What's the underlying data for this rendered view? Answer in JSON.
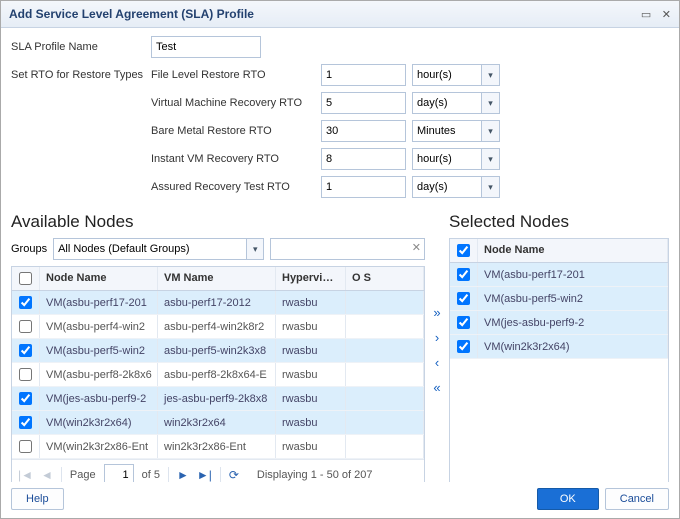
{
  "dialog": {
    "title": "Add Service Level Agreement (SLA) Profile"
  },
  "form": {
    "profile_name_label": "SLA Profile Name",
    "profile_name_value": "Test",
    "set_rto_label": "Set RTO for Restore Types",
    "rto_rows": [
      {
        "label": "File Level Restore RTO",
        "value": "1",
        "unit": "hour(s)"
      },
      {
        "label": "Virtual Machine Recovery RTO",
        "value": "5",
        "unit": "day(s)"
      },
      {
        "label": "Bare Metal Restore RTO",
        "value": "30",
        "unit": "Minutes"
      },
      {
        "label": "Instant VM Recovery RTO",
        "value": "8",
        "unit": "hour(s)"
      },
      {
        "label": "Assured Recovery Test RTO",
        "value": "1",
        "unit": "day(s)"
      }
    ]
  },
  "sections": {
    "available": "Available Nodes",
    "selected": "Selected Nodes"
  },
  "filter": {
    "groups_label": "Groups",
    "groups_value": "All Nodes (Default Groups)",
    "search_value": ""
  },
  "available": {
    "columns": [
      "Node Name",
      "VM Name",
      "Hypervisor",
      "O S"
    ],
    "rows": [
      {
        "checked": true,
        "sel": true,
        "node": "VM(asbu-perf17-201",
        "vm": "asbu-perf17-2012",
        "hyp": "rwasbu",
        "os": ""
      },
      {
        "checked": false,
        "sel": false,
        "node": "VM(asbu-perf4-win2",
        "vm": "asbu-perf4-win2k8r2",
        "hyp": "rwasbu",
        "os": ""
      },
      {
        "checked": true,
        "sel": true,
        "node": "VM(asbu-perf5-win2",
        "vm": "asbu-perf5-win2k3x8",
        "hyp": "rwasbu",
        "os": ""
      },
      {
        "checked": false,
        "sel": false,
        "node": "VM(asbu-perf8-2k8x6",
        "vm": "asbu-perf8-2k8x64-E",
        "hyp": "rwasbu",
        "os": ""
      },
      {
        "checked": true,
        "sel": true,
        "node": "VM(jes-asbu-perf9-2",
        "vm": "jes-asbu-perf9-2k8x8",
        "hyp": "rwasbu",
        "os": ""
      },
      {
        "checked": true,
        "sel": true,
        "node": "VM(win2k3r2x64)",
        "vm": "win2k3r2x64",
        "hyp": "rwasbu",
        "os": ""
      },
      {
        "checked": false,
        "sel": false,
        "node": "VM(win2k3r2x86-Ent",
        "vm": "win2k3r2x86-Ent",
        "hyp": "rwasbu",
        "os": ""
      }
    ]
  },
  "selected": {
    "columns": [
      "Node Name"
    ],
    "rows": [
      {
        "checked": true,
        "node": "VM(asbu-perf17-201"
      },
      {
        "checked": true,
        "node": "VM(asbu-perf5-win2"
      },
      {
        "checked": true,
        "node": "VM(jes-asbu-perf9-2"
      },
      {
        "checked": true,
        "node": "VM(win2k3r2x64)"
      }
    ]
  },
  "pager": {
    "page_label": "Page",
    "current": "1",
    "of_label": "of 5",
    "displaying": "Displaying 1 - 50 of 207"
  },
  "buttons": {
    "help": "Help",
    "ok": "OK",
    "cancel": "Cancel"
  },
  "colors": {
    "header_bg": "#f3f6fb",
    "row_selected": "#dbeefc",
    "border": "#c7d3e3",
    "primary_btn": "#1a6fd6",
    "link": "#1a4c99"
  }
}
